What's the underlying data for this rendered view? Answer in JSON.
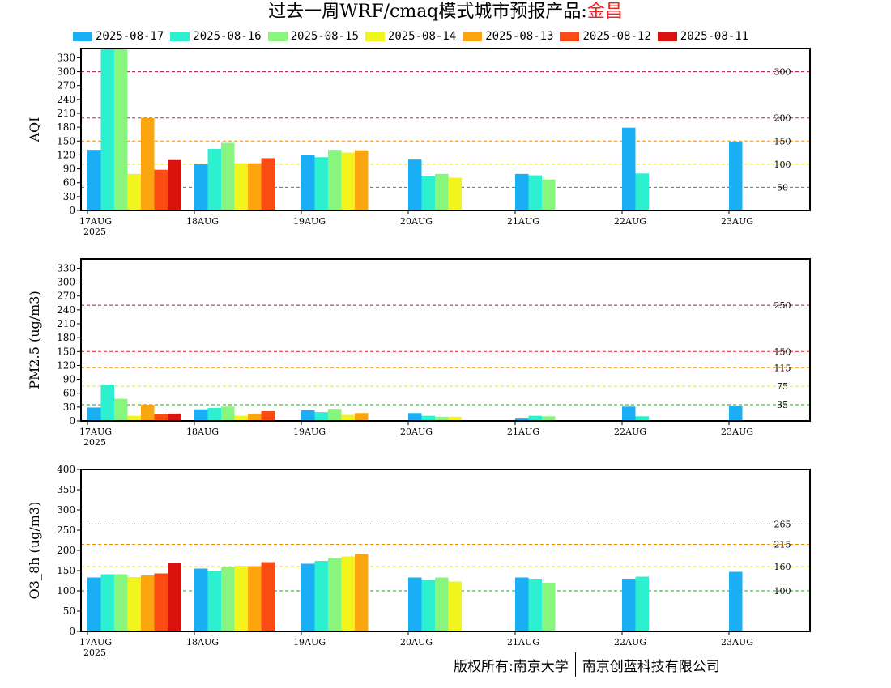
{
  "page": {
    "title_prefix": "过去一周WRF/cmaq模式城市预报产品:",
    "title_city": "金昌",
    "copyright_left": "版权所有:南京大学",
    "copyright_right": "南京创蓝科技有限公司"
  },
  "legend": [
    {
      "label": "2025-08-17",
      "color": "#1aaef5"
    },
    {
      "label": "2025-08-16",
      "color": "#2cf0cf"
    },
    {
      "label": "2025-08-15",
      "color": "#88f57f"
    },
    {
      "label": "2025-08-14",
      "color": "#f2f51d"
    },
    {
      "label": "2025-08-13",
      "color": "#fba50f"
    },
    {
      "label": "2025-08-12",
      "color": "#fa4c12"
    },
    {
      "label": "2025-08-11",
      "color": "#d9120d"
    }
  ],
  "chart_data": [
    {
      "type": "bar",
      "ylabel": "AQI",
      "ylim": [
        0,
        350
      ],
      "yticks": [
        0,
        30,
        60,
        90,
        120,
        150,
        180,
        210,
        240,
        270,
        300,
        330
      ],
      "x_ticks": [
        "17AUG",
        "18AUG",
        "19AUG",
        "20AUG",
        "21AUG",
        "22AUG",
        "23AUG"
      ],
      "x_year_label": "2025",
      "thresholds": [
        {
          "value": 300,
          "label": "300",
          "color": "#b0183a"
        },
        {
          "value": 200,
          "label": "200",
          "color": "#e02020"
        },
        {
          "value": 150,
          "label": "150",
          "color": "#f08c00"
        },
        {
          "value": 100,
          "label": "100",
          "color": "#e8e800"
        },
        {
          "value": 50,
          "label": "50",
          "color": "#10b010"
        }
      ],
      "series": [
        {
          "name": "2025-08-17",
          "values": [
            131,
            100,
            119,
            110,
            79,
            179,
            149
          ]
        },
        {
          "name": "2025-08-16",
          "values": [
            350,
            133,
            115,
            74,
            76,
            80,
            null
          ]
        },
        {
          "name": "2025-08-15",
          "values": [
            350,
            146,
            131,
            79,
            67,
            null,
            null
          ]
        },
        {
          "name": "2025-08-14",
          "values": [
            79,
            102,
            125,
            71,
            null,
            null,
            null
          ]
        },
        {
          "name": "2025-08-13",
          "values": [
            200,
            102,
            130,
            null,
            null,
            null,
            null
          ]
        },
        {
          "name": "2025-08-12",
          "values": [
            88,
            113,
            null,
            null,
            null,
            null,
            null
          ]
        },
        {
          "name": "2025-08-11",
          "values": [
            109,
            null,
            null,
            null,
            null,
            null,
            null
          ]
        }
      ]
    },
    {
      "type": "bar",
      "ylabel": "PM2.5 (ug/m3)",
      "ylim": [
        0,
        350
      ],
      "yticks": [
        0,
        30,
        60,
        90,
        120,
        150,
        180,
        210,
        240,
        270,
        300,
        330
      ],
      "x_ticks": [
        "17AUG",
        "18AUG",
        "19AUG",
        "20AUG",
        "21AUG",
        "22AUG",
        "23AUG"
      ],
      "x_year_label": "2025",
      "thresholds": [
        {
          "value": 250,
          "label": "250",
          "color": "#b0183a"
        },
        {
          "value": 150,
          "label": "150",
          "color": "#e02020"
        },
        {
          "value": 115,
          "label": "115",
          "color": "#f08c00"
        },
        {
          "value": 75,
          "label": "75",
          "color": "#e8e800"
        },
        {
          "value": 35,
          "label": "35",
          "color": "#10b010"
        }
      ],
      "series": [
        {
          "name": "2025-08-17",
          "values": [
            29,
            25,
            23,
            17,
            5,
            31,
            32
          ]
        },
        {
          "name": "2025-08-16",
          "values": [
            77,
            28,
            19,
            11,
            11,
            10,
            null
          ]
        },
        {
          "name": "2025-08-15",
          "values": [
            48,
            31,
            26,
            9,
            10,
            null,
            null
          ]
        },
        {
          "name": "2025-08-14",
          "values": [
            11,
            11,
            13,
            9,
            null,
            null,
            null
          ]
        },
        {
          "name": "2025-08-13",
          "values": [
            35,
            16,
            17,
            null,
            null,
            null,
            null
          ]
        },
        {
          "name": "2025-08-12",
          "values": [
            14,
            21,
            null,
            null,
            null,
            null,
            null
          ]
        },
        {
          "name": "2025-08-11",
          "values": [
            16,
            null,
            null,
            null,
            null,
            null,
            null
          ]
        }
      ]
    },
    {
      "type": "bar",
      "ylabel": "O3_8h (ug/m3)",
      "ylim": [
        0,
        400
      ],
      "yticks": [
        0,
        50,
        100,
        150,
        200,
        250,
        300,
        350,
        400
      ],
      "x_ticks": [
        "17AUG",
        "18AUG",
        "19AUG",
        "20AUG",
        "21AUG",
        "22AUG",
        "23AUG"
      ],
      "x_year_label": "2025",
      "thresholds": [
        {
          "value": 265,
          "label": "265",
          "color": "#e02020"
        },
        {
          "value": 215,
          "label": "215",
          "color": "#f08c00"
        },
        {
          "value": 160,
          "label": "160",
          "color": "#e8e800"
        },
        {
          "value": 100,
          "label": "100",
          "color": "#10b010"
        }
      ],
      "series": [
        {
          "name": "2025-08-17",
          "values": [
            133,
            155,
            167,
            133,
            133,
            130,
            147
          ]
        },
        {
          "name": "2025-08-16",
          "values": [
            141,
            150,
            174,
            127,
            130,
            135,
            null
          ]
        },
        {
          "name": "2025-08-15",
          "values": [
            141,
            159,
            180,
            133,
            120,
            null,
            null
          ]
        },
        {
          "name": "2025-08-14",
          "values": [
            134,
            162,
            185,
            123,
            null,
            null,
            null
          ]
        },
        {
          "name": "2025-08-13",
          "values": [
            138,
            161,
            191,
            null,
            null,
            null,
            null
          ]
        },
        {
          "name": "2025-08-12",
          "values": [
            143,
            171,
            null,
            null,
            null,
            null,
            null
          ]
        },
        {
          "name": "2025-08-11",
          "values": [
            169,
            null,
            null,
            null,
            null,
            null,
            null
          ]
        }
      ]
    }
  ]
}
